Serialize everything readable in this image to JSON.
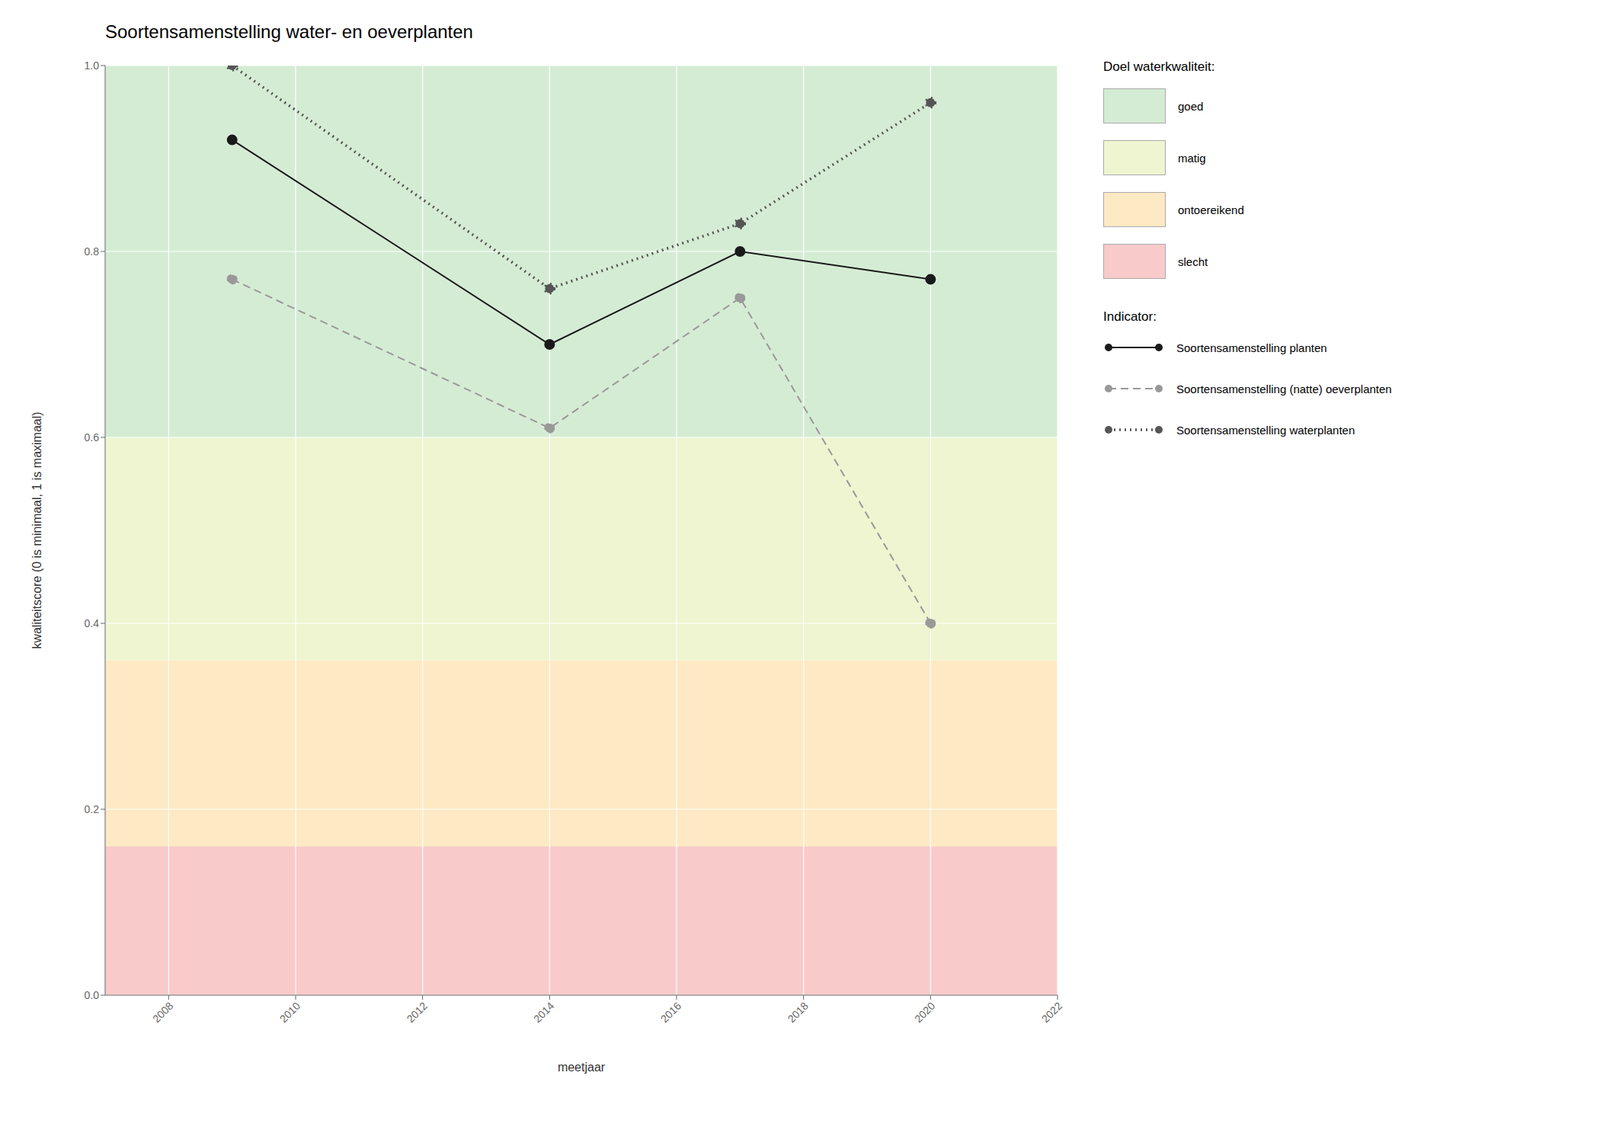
{
  "chart_data": {
    "type": "line",
    "title": "Soortensamenstelling water- en oeverplanten",
    "x_label": "meetjaar",
    "y_label": "kwaliteitscore (0 is minimaal, 1 is maximaal)",
    "x": [
      2009,
      2014,
      2017,
      2020
    ],
    "xlim": [
      2007,
      2022
    ],
    "xticks": [
      2008,
      2010,
      2012,
      2014,
      2016,
      2018,
      2020,
      2022
    ],
    "ylim": [
      0.0,
      1.0
    ],
    "yticks": [
      {
        "value": 0.0,
        "label": "0.0"
      },
      0.2,
      0.4,
      0.6,
      0.8,
      {
        "value": 1.0,
        "label": "1.0"
      }
    ],
    "grid": true,
    "legend": "right",
    "bands_title": "Doel waterkwaliteit:",
    "bands": [
      {
        "name": "goed",
        "min": 0.6,
        "max": 1.0,
        "color": "#d5ecd4"
      },
      {
        "name": "matig",
        "min": 0.36,
        "max": 0.6,
        "color": "#eef5d0"
      },
      {
        "name": "ontoereikend",
        "min": 0.16,
        "max": 0.36,
        "color": "#fde9c3"
      },
      {
        "name": "slecht",
        "min": 0.0,
        "max": 0.16,
        "color": "#f9caca"
      }
    ],
    "series_title": "Indicator:",
    "series": [
      {
        "name": "Soortensamenstelling planten",
        "color": "#1a1a1a",
        "line_style": "solid",
        "marker": "circle",
        "values": [
          0.92,
          0.7,
          0.8,
          0.77
        ]
      },
      {
        "name": "Soortensamenstelling (natte) oeverplanten",
        "color": "#999999",
        "line_style": "dashed",
        "marker": "circle",
        "values": [
          0.77,
          0.61,
          0.75,
          0.4
        ]
      },
      {
        "name": "Soortensamenstelling waterplanten",
        "color": "#555555",
        "line_style": "dotted",
        "marker": "circle",
        "values": [
          1.0,
          0.76,
          0.83,
          0.96
        ]
      }
    ]
  }
}
